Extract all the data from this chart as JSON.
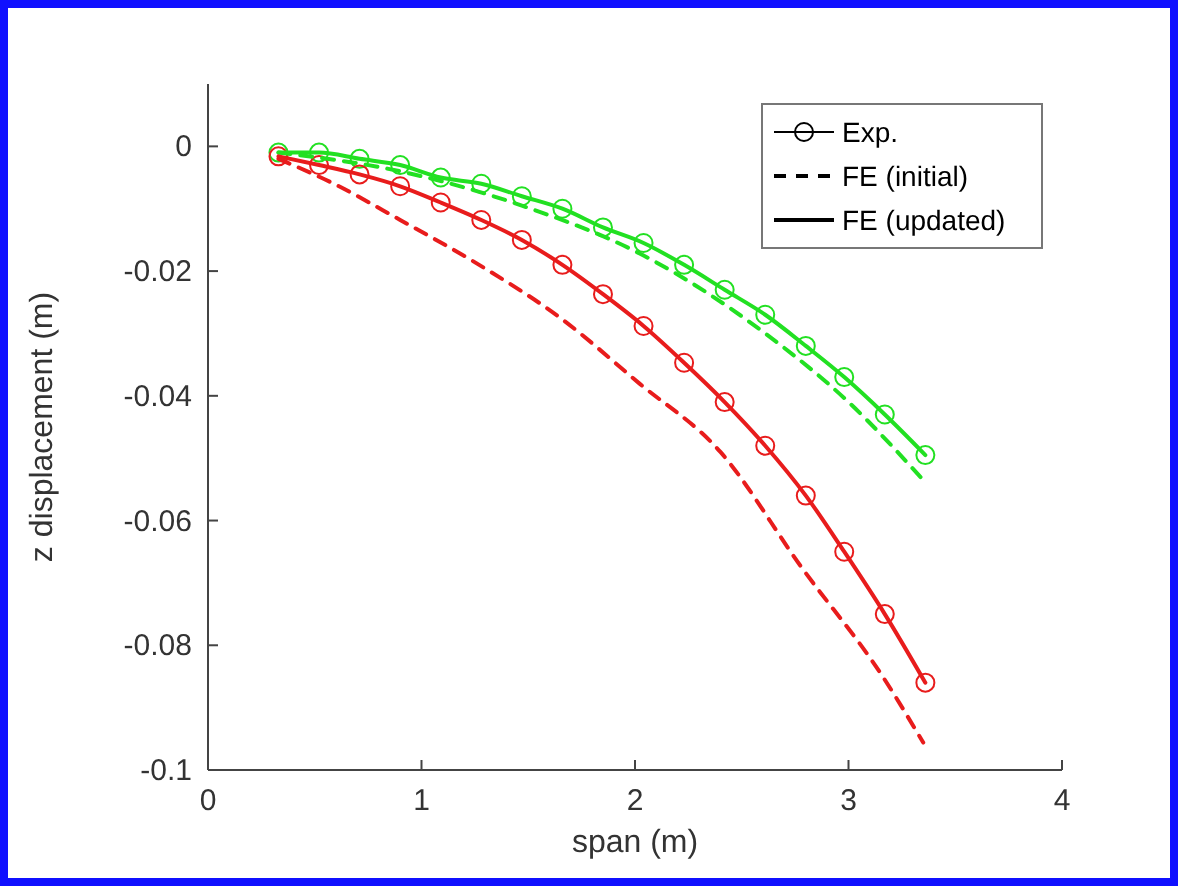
{
  "chart_data": {
    "type": "line",
    "xlabel": "span (m)",
    "ylabel": "z displacement (m)",
    "xlim": [
      0,
      4
    ],
    "ylim": [
      -0.1,
      0.01
    ],
    "xticks": [
      0,
      1,
      2,
      3,
      4
    ],
    "yticks": [
      -0.1,
      -0.08,
      -0.06,
      -0.04,
      -0.02,
      0
    ],
    "grid": false,
    "annotations": [
      "Exp.",
      "FE (initial)",
      "FE (updated)"
    ],
    "series": [
      {
        "type": "scatter",
        "color": "#22e022",
        "marker": "circle",
        "x": [
          0.33,
          0.52,
          0.71,
          0.9,
          1.09,
          1.28,
          1.47,
          1.66,
          1.85,
          2.04,
          2.23,
          2.42,
          2.61,
          2.8,
          2.98,
          3.17,
          3.36
        ],
        "values": [
          -0.001,
          -0.001,
          -0.002,
          -0.003,
          -0.005,
          -0.006,
          -0.008,
          -0.01,
          -0.013,
          -0.0155,
          -0.019,
          -0.023,
          -0.027,
          -0.032,
          -0.037,
          -0.043,
          -0.0495
        ]
      },
      {
        "type": "scatter",
        "color": "#e81c1c",
        "marker": "circle",
        "x": [
          0.33,
          0.52,
          0.71,
          0.9,
          1.09,
          1.28,
          1.47,
          1.66,
          1.85,
          2.04,
          2.23,
          2.42,
          2.61,
          2.8,
          2.98,
          3.17,
          3.36
        ],
        "values": [
          -0.0016,
          -0.003,
          -0.0045,
          -0.0064,
          -0.009,
          -0.0118,
          -0.015,
          -0.019,
          -0.0237,
          -0.0288,
          -0.0347,
          -0.041,
          -0.048,
          -0.056,
          -0.065,
          -0.075,
          -0.086
        ]
      },
      {
        "type": "line",
        "color": "#22e022",
        "line_style": "dashed",
        "x": [
          0.33,
          0.9,
          1.47,
          2.04,
          2.61,
          3.0,
          3.35
        ],
        "values": [
          -0.001,
          -0.004,
          -0.0095,
          -0.0175,
          -0.03,
          -0.041,
          -0.0535
        ]
      },
      {
        "type": "line",
        "color": "#e81c1c",
        "line_style": "dashed",
        "x": [
          0.33,
          0.59,
          0.9,
          1.27,
          1.65,
          2.02,
          2.4,
          2.78,
          3.16,
          3.35
        ],
        "values": [
          -0.002,
          -0.006,
          -0.0118,
          -0.019,
          -0.0275,
          -0.038,
          -0.049,
          -0.0675,
          -0.085,
          -0.0956
        ]
      },
      {
        "type": "line",
        "color": "#22e022",
        "line_style": "solid",
        "x": [
          0.33,
          0.52,
          0.71,
          0.9,
          1.09,
          1.28,
          1.47,
          1.66,
          1.85,
          2.04,
          2.23,
          2.42,
          2.61,
          2.8,
          2.98,
          3.17,
          3.36
        ],
        "values": [
          -0.001,
          -0.001,
          -0.002,
          -0.003,
          -0.005,
          -0.006,
          -0.008,
          -0.01,
          -0.013,
          -0.0155,
          -0.019,
          -0.023,
          -0.027,
          -0.032,
          -0.037,
          -0.043,
          -0.0495
        ]
      },
      {
        "type": "line",
        "color": "#e81c1c",
        "line_style": "solid",
        "x": [
          0.33,
          0.52,
          0.71,
          0.9,
          1.09,
          1.28,
          1.47,
          1.66,
          1.85,
          2.04,
          2.23,
          2.42,
          2.61,
          2.8,
          2.98,
          3.17,
          3.36
        ],
        "values": [
          -0.0016,
          -0.003,
          -0.0045,
          -0.0064,
          -0.009,
          -0.0118,
          -0.015,
          -0.019,
          -0.0237,
          -0.0288,
          -0.0347,
          -0.041,
          -0.048,
          -0.056,
          -0.065,
          -0.075,
          -0.086
        ]
      }
    ]
  }
}
